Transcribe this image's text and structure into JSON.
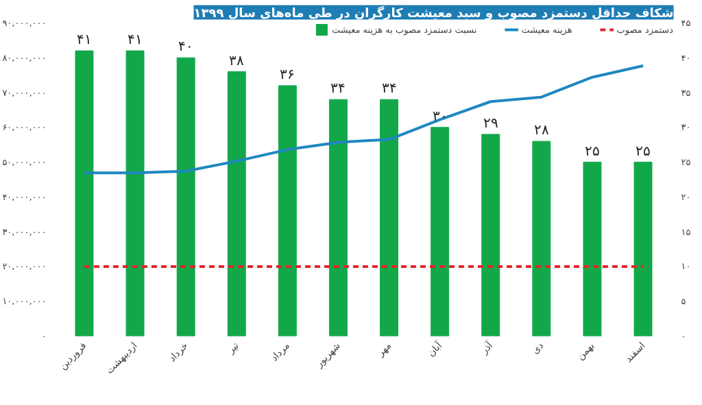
{
  "chart_data": {
    "type": "bar",
    "title": "شکاف حداقل دستمزد مصوب و سبد معیشت کارگران در طی ماه‌های سال ۱۳۹۹",
    "categories": [
      "فروردین",
      "اردیبهشت",
      "خرداد",
      "تیر",
      "مرداد",
      "شهریور",
      "مهر",
      "آبان",
      "آذر",
      "دی",
      "بهمن",
      "اسفند"
    ],
    "series": [
      {
        "name": "نسبت دستمزد مصوب به هزینه معیشت",
        "axis": "y2",
        "color": "#12a84a",
        "values": [
          41,
          41,
          40,
          38,
          36,
          34,
          34,
          30,
          29,
          28,
          25,
          25
        ],
        "value_labels": [
          "۴۱",
          "۴۱",
          "۴۰",
          "۳۸",
          "۳۶",
          "۳۴",
          "۳۴",
          "۳۰",
          "۲۹",
          "۲۸",
          "۲۵",
          "۲۵"
        ]
      },
      {
        "name": "هزینه معیشت",
        "type": "line",
        "color": "#1f87c0",
        "values": [
          46900000,
          46900000,
          47400000,
          50300000,
          53600000,
          55700000,
          56500000,
          62200000,
          67400000,
          68700000,
          74400000,
          77700000
        ]
      },
      {
        "name": "دستمزد مصوب",
        "type": "line",
        "line_style": "dashed",
        "color": "#e0262b",
        "values": [
          20000000,
          20000000,
          20000000,
          20000000,
          20000000,
          20000000,
          20000000,
          20000000,
          20000000,
          20000000,
          20000000,
          20000000
        ]
      }
    ],
    "ylim": [
      0,
      90000000
    ],
    "yticks": [
      {
        "value": 0,
        "label": "۰"
      },
      {
        "value": 10000000,
        "label": "۱۰,۰۰۰,۰۰۰"
      },
      {
        "value": 20000000,
        "label": "۲۰,۰۰۰,۰۰۰"
      },
      {
        "value": 30000000,
        "label": "۳۰,۰۰۰,۰۰۰"
      },
      {
        "value": 40000000,
        "label": "۴۰,۰۰۰,۰۰۰"
      },
      {
        "value": 50000000,
        "label": "۵۰,۰۰۰,۰۰۰"
      },
      {
        "value": 60000000,
        "label": "۶۰,۰۰۰,۰۰۰"
      },
      {
        "value": 70000000,
        "label": "۷۰,۰۰۰,۰۰۰"
      },
      {
        "value": 80000000,
        "label": "۸۰,۰۰۰,۰۰۰"
      },
      {
        "value": 90000000,
        "label": "۹۰,۰۰۰,۰۰۰"
      }
    ],
    "y2lim": [
      0,
      45
    ],
    "y2ticks": [
      {
        "value": 0,
        "label": "۰"
      },
      {
        "value": 5,
        "label": "۵"
      },
      {
        "value": 10,
        "label": "۱۰"
      },
      {
        "value": 15,
        "label": "۱۵"
      },
      {
        "value": 20,
        "label": "۲۰"
      },
      {
        "value": 25,
        "label": "۲۵"
      },
      {
        "value": 30,
        "label": "۳۰"
      },
      {
        "value": 35,
        "label": "۳۵"
      },
      {
        "value": 40,
        "label": "۴۰"
      },
      {
        "value": 45,
        "label": "۴۵"
      }
    ],
    "legend": "top",
    "grid": false
  }
}
